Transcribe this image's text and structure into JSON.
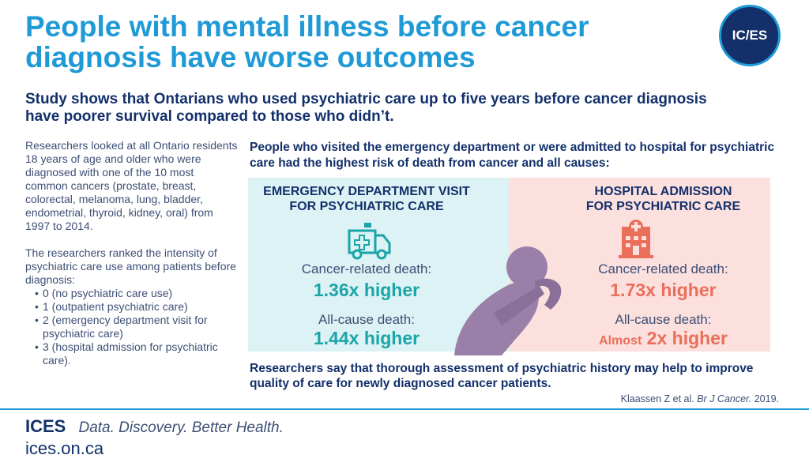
{
  "title": "People with mental illness before cancer diagnosis have worse outcomes",
  "logo": "IC/ES",
  "subtitle": "Study shows that Ontarians who used psychiatric care up to five years before cancer diagnosis have poorer survival compared to those who didn’t.",
  "left": {
    "para1": "Researchers looked at all Ontario residents 18 years of age and older who were diagnosed with one of the 10 most common cancers (prostate, breast, colorectal, melanoma, lung, bladder, endometrial, thyroid, kidney, oral) from 1997 to 2014.",
    "para2": "The researchers ranked the intensity of psychiatric care use among patients before diagnosis:",
    "levels": [
      "0 (no psychiatric care use)",
      "1 (outpatient psychiatric care)",
      "2 (emergency department visit for psychiatric care)",
      "3 (hospital admission for psychiatric care)."
    ]
  },
  "lead": "People who visited the emergency department or were admitted to hospital for psychiatric care had the highest risk of death from cancer and all causes:",
  "ed": {
    "title_line1": "EMERGENCY DEPARTMENT VISIT",
    "title_line2": "FOR PSYCHIATRIC CARE",
    "cancer_label": "Cancer-related death:",
    "cancer_value": "1.36x higher",
    "allcause_label": "All-cause death:",
    "allcause_value": "1.44x higher"
  },
  "hosp": {
    "title_line1": "HOSPITAL ADMISSION",
    "title_line2": "FOR PSYCHIATRIC CARE",
    "cancer_label": "Cancer-related death:",
    "cancer_value": "1.73x higher",
    "allcause_label": "All-cause death:",
    "allcause_prefix": "Almost",
    "allcause_value": "2x higher"
  },
  "conclusion": "Researchers say that thorough assessment of psychiatric history may help to improve quality of care for newly diagnosed cancer patients.",
  "citation": {
    "authors": "Klaassen Z et al.",
    "journal": "Br J Cancer.",
    "year": "2019."
  },
  "footer": {
    "brand": "ICES",
    "tagline": "Data. Discovery. Better Health.",
    "url": "ices.on.ca"
  },
  "colors": {
    "title_blue": "#1f9ad6",
    "navy": "#13306b",
    "teal": "#1aa5a8",
    "coral": "#ea6f5a",
    "panel_teal_bg": "#dcf2f4",
    "panel_pink_bg": "#fbe0de",
    "figure_purple": "#9a80a8"
  },
  "icons": [
    "ambulance-icon",
    "hospital-icon",
    "distressed-person-icon"
  ]
}
